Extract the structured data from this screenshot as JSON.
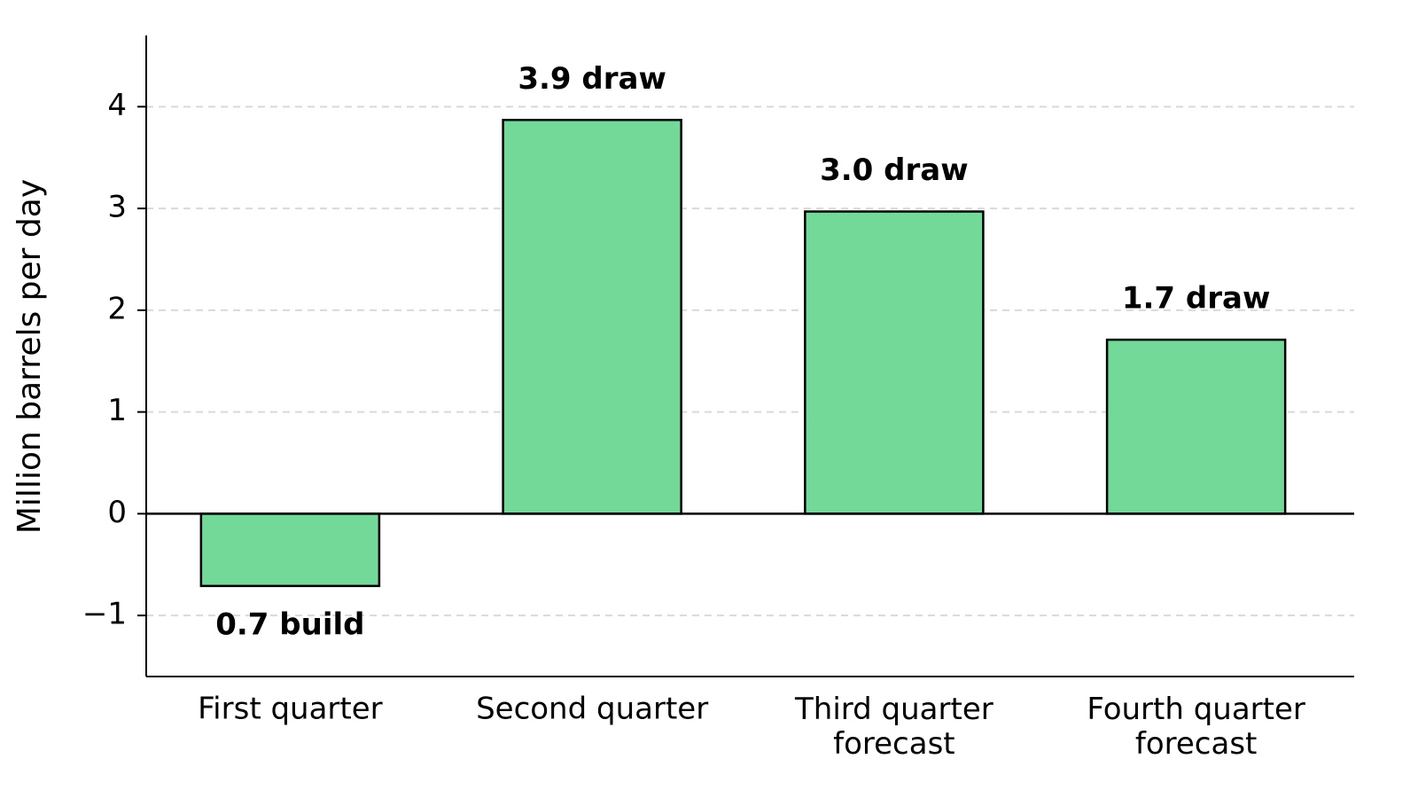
{
  "chart_data": {
    "type": "bar",
    "y_label": "Million barrels per day",
    "categories": [
      "First quarter",
      "Second quarter",
      "Third quarter\nforecast",
      "Fourth quarter\nforecast"
    ],
    "values": [
      -0.71,
      3.87,
      2.97,
      1.71
    ],
    "value_labels": [
      "0.7 build",
      "3.9 draw",
      "3.0 draw",
      "1.7 draw"
    ],
    "color": "#72d998",
    "ylim": [
      -1.6,
      4.7
    ],
    "yticks": [
      {
        "value": -1,
        "label": "−1"
      },
      0,
      1,
      2,
      3,
      4
    ],
    "grid": true
  }
}
